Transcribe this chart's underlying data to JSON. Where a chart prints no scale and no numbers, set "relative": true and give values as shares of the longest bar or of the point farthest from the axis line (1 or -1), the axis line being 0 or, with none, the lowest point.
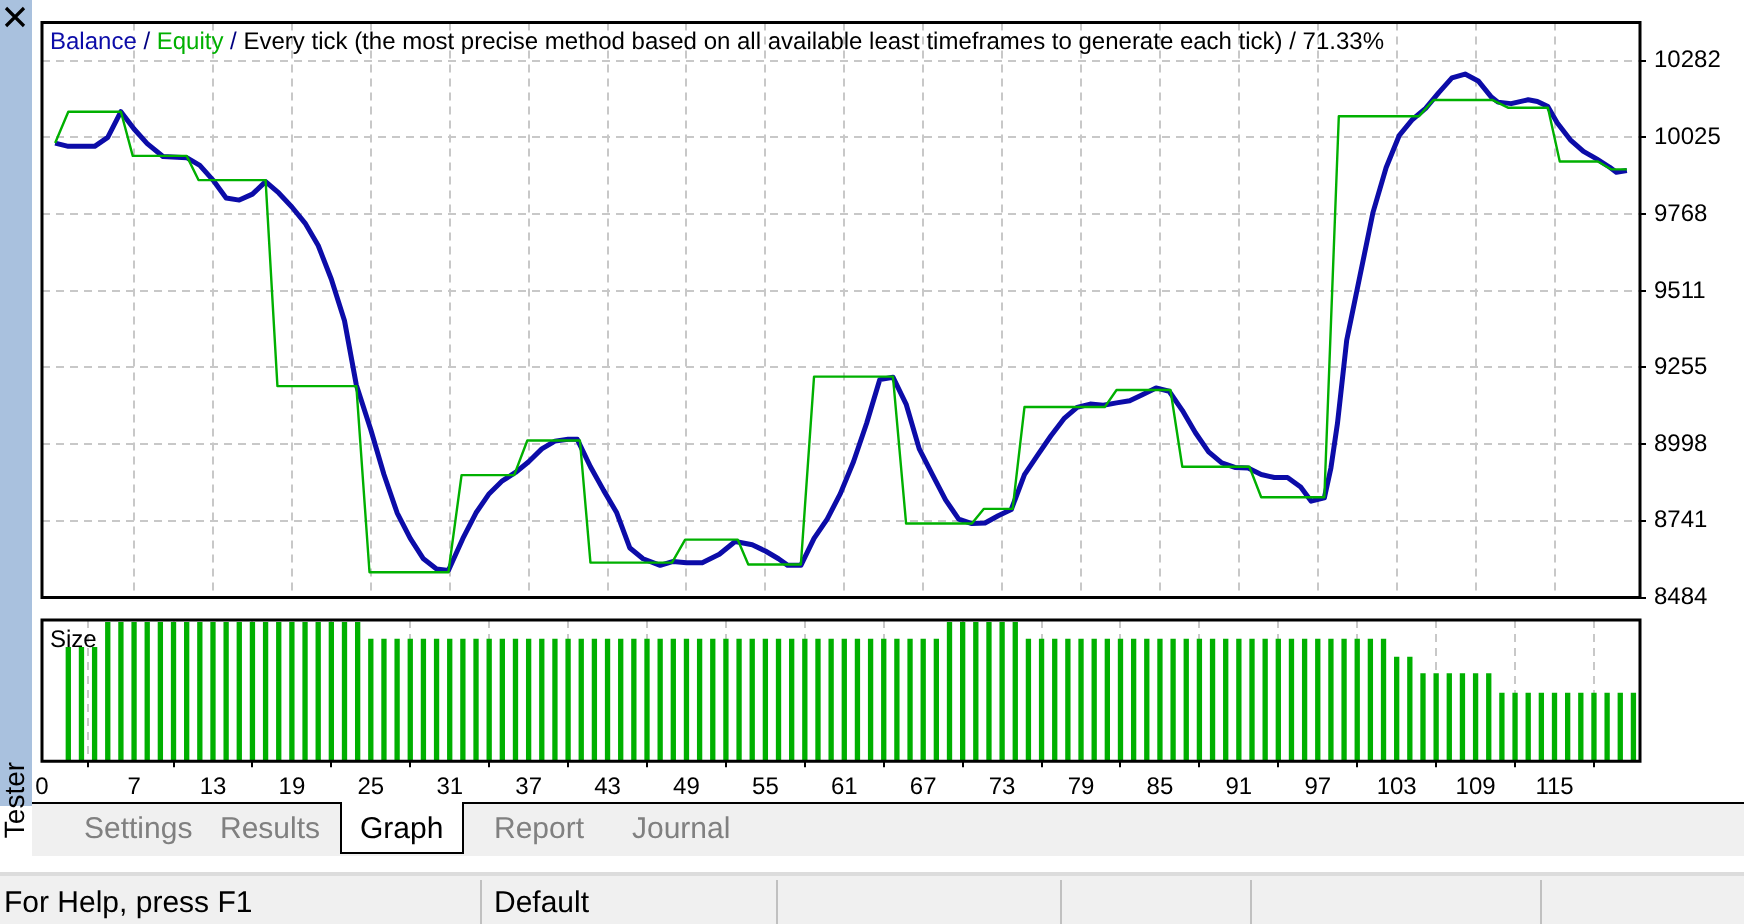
{
  "chart_data": [
    {
      "type": "line",
      "title": "Every tick (the most precise method based on all available least timeframes to generate each tick) / 71.33%",
      "xlim": [
        0,
        121.5
      ],
      "xticks": [
        0,
        7,
        13,
        19,
        25,
        31,
        37,
        43,
        49,
        55,
        61,
        67,
        73,
        79,
        85,
        91,
        97,
        103,
        109,
        115
      ],
      "ylim": [
        8484,
        10410
      ],
      "yticks": [
        8484,
        8741,
        8998,
        9255,
        9511,
        9768,
        10025,
        10282
      ],
      "grid": true,
      "tick_labels": "y",
      "line_style": "solid",
      "marker": "none",
      "annotations": [
        "/",
        "/"
      ],
      "series": [
        {
          "name": "Balance",
          "color": "#0c0ca8",
          "x": [
            1,
            2,
            4,
            5,
            6,
            7,
            8,
            9.2,
            11,
            12,
            13,
            14,
            15,
            16,
            17,
            18,
            19,
            20,
            21,
            22,
            23,
            23.9,
            25,
            26,
            27,
            28,
            29,
            30,
            30.9,
            32,
            33,
            34,
            35,
            36,
            37,
            38,
            39,
            40,
            40.7,
            41.7,
            42.7,
            43.7,
            44.7,
            45.7,
            47,
            48,
            49,
            50.2,
            51.5,
            52.7,
            54,
            55,
            56,
            56.7,
            57.7,
            58.7,
            59.7,
            60.7,
            61.7,
            62.7,
            63.7,
            64.7,
            65.7,
            66.7,
            67.7,
            68.7,
            69.7,
            70.7,
            71.7,
            72.7,
            73.7,
            74.7,
            75.7,
            76.7,
            77.7,
            78.7,
            79.7,
            80.7,
            81.7,
            82.7,
            83.7,
            84.7,
            85.7,
            86.7,
            87.7,
            88.7,
            89.7,
            90.7,
            91.7,
            92.7,
            93.7,
            94.7,
            95.7,
            96.5,
            97.5,
            98,
            98.5,
            99.2,
            100.2,
            101.2,
            102.2,
            103.2,
            104.2,
            105.2,
            106.2,
            107.2,
            108.2,
            109.2,
            110.2,
            110.7,
            111.7,
            113,
            113.7,
            114.5,
            115.2,
            116.2,
            117.2,
            118.2,
            119.2,
            119.7,
            120.5
          ],
          "values": [
            10006,
            9995,
            9995,
            10025,
            10111,
            10053,
            10004,
            9961,
            9957,
            9931,
            9882,
            9822,
            9815,
            9835,
            9877,
            9839,
            9792,
            9738,
            9663,
            9550,
            9411,
            9196,
            9046,
            8896,
            8768,
            8682,
            8614,
            8580,
            8575,
            8682,
            8768,
            8832,
            8875,
            8903,
            8939,
            8982,
            9008,
            9014,
            9014,
            8922,
            8843,
            8768,
            8650,
            8614,
            8592,
            8605,
            8601,
            8601,
            8629,
            8672,
            8661,
            8640,
            8614,
            8592,
            8592,
            8682,
            8747,
            8832,
            8939,
            9068,
            9214,
            9222,
            9132,
            8982,
            8896,
            8811,
            8747,
            8732,
            8734,
            8758,
            8779,
            8896,
            8961,
            9025,
            9083,
            9121,
            9132,
            9128,
            9136,
            9143,
            9164,
            9186,
            9175,
            9111,
            9036,
            8972,
            8935,
            8920,
            8918,
            8896,
            8886,
            8886,
            8854,
            8807,
            8818,
            8918,
            9068,
            9346,
            9560,
            9774,
            9924,
            10032,
            10085,
            10122,
            10175,
            10224,
            10237,
            10214,
            10160,
            10143,
            10138,
            10151,
            10145,
            10128,
            10074,
            10017,
            9978,
            9953,
            9925,
            9908,
            9914
          ]
        },
        {
          "name": "Equity",
          "color": "#00b000",
          "x": [
            1,
            2,
            6,
            6.9,
            11,
            11.9,
            17,
            17.9,
            23.9,
            24.9,
            30.9,
            31.9,
            35.9,
            36.9,
            40.9,
            41.7,
            47.9,
            48.9,
            52.9,
            53.7,
            57.7,
            58.7,
            64.7,
            65.7,
            70.7,
            71.6,
            73.8,
            74.7,
            80.8,
            81.7,
            85.8,
            86.7,
            91.8,
            92.7,
            97.5,
            98.6,
            104.7,
            105.8,
            110.3,
            111.5,
            114.5,
            115.4,
            118.3,
            119.3,
            120.5
          ],
          "values": [
            10006,
            10111,
            10111,
            9963,
            9963,
            9882,
            9882,
            9192,
            9192,
            8569,
            8569,
            8894,
            8894,
            9010,
            9010,
            8601,
            8601,
            8678,
            8678,
            8595,
            8595,
            9224,
            9224,
            8732,
            8732,
            8781,
            8781,
            9122,
            9122,
            9179,
            9179,
            8922,
            8922,
            8820,
            8820,
            10096,
            10096,
            10150,
            10150,
            10124,
            10124,
            9944,
            9944,
            9918,
            9918
          ]
        }
      ]
    },
    {
      "type": "bar",
      "title": "Size",
      "relative": true,
      "color": "#00b000",
      "xlim": [
        0,
        121.5
      ],
      "xticks": [
        0,
        7,
        13,
        19,
        25,
        31,
        37,
        43,
        49,
        55,
        61,
        67,
        73,
        79,
        85,
        91,
        97,
        103,
        109,
        115
      ],
      "grid": "x",
      "tick_labels": "x",
      "x": [
        2,
        3,
        4,
        5,
        6,
        7,
        8,
        9,
        10,
        11,
        12,
        13,
        14,
        15,
        16,
        17,
        18,
        19,
        20,
        21,
        22,
        23,
        24,
        25,
        26,
        27,
        28,
        29,
        30,
        31,
        32,
        33,
        34,
        35,
        36,
        37,
        38,
        39,
        40,
        41,
        42,
        43,
        44,
        45,
        46,
        47,
        48,
        49,
        50,
        51,
        52,
        53,
        54,
        55,
        56,
        57,
        58,
        59,
        60,
        61,
        62,
        63,
        64,
        65,
        66,
        67,
        68,
        69,
        70,
        71,
        72,
        73,
        74,
        75,
        76,
        77,
        78,
        79,
        80,
        81,
        82,
        83,
        84,
        85,
        86,
        87,
        88,
        89,
        90,
        91,
        92,
        93,
        94,
        95,
        96,
        97,
        98,
        99,
        100,
        101,
        102,
        103,
        104,
        105,
        106,
        107,
        108,
        109,
        110,
        111,
        112,
        113,
        114,
        115,
        116,
        117,
        118,
        119,
        120,
        121
      ],
      "values": [
        0.82,
        0.82,
        0.82,
        1,
        1,
        1,
        1,
        1,
        1,
        1,
        1,
        1,
        1,
        1,
        1,
        1,
        1,
        1,
        1,
        1,
        1,
        1,
        1,
        0.88,
        0.88,
        0.88,
        0.88,
        0.88,
        0.88,
        0.88,
        0.88,
        0.88,
        0.88,
        0.88,
        0.88,
        0.88,
        0.88,
        0.88,
        0.88,
        0.88,
        0.88,
        0.88,
        0.88,
        0.88,
        0.88,
        0.88,
        0.88,
        0.88,
        0.88,
        0.88,
        0.88,
        0.88,
        0.88,
        0.88,
        0.88,
        0.88,
        0.88,
        0.88,
        0.88,
        0.88,
        0.88,
        0.88,
        0.88,
        0.88,
        0.88,
        0.88,
        0.88,
        1,
        1,
        1,
        1,
        1,
        1,
        0.88,
        0.88,
        0.88,
        0.88,
        0.88,
        0.88,
        0.88,
        0.88,
        0.88,
        0.88,
        0.88,
        0.88,
        0.88,
        0.88,
        0.88,
        0.88,
        0.88,
        0.88,
        0.88,
        0.88,
        0.88,
        0.88,
        0.88,
        0.88,
        0.88,
        0.88,
        0.88,
        0.88,
        0.75,
        0.75,
        0.63,
        0.63,
        0.63,
        0.63,
        0.63,
        0.63,
        0.49,
        0.49,
        0.49,
        0.49,
        0.49,
        0.49,
        0.49,
        0.49,
        0.49,
        0.49,
        0.49
      ],
      "annotations": [
        "Tester",
        "Settings",
        "Results",
        "Graph",
        "Report",
        "Journal",
        "For Help, press F1",
        "Default"
      ]
    }
  ]
}
